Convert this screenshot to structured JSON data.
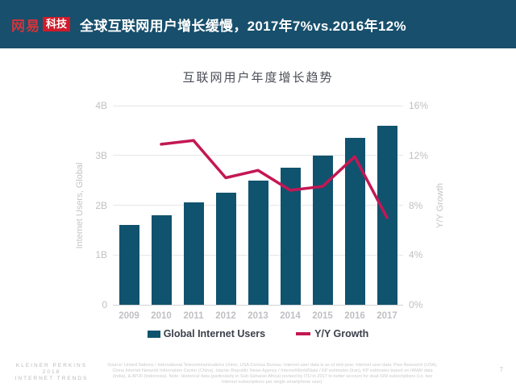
{
  "header": {
    "logo_brand": "网易",
    "logo_badge": "科技",
    "title": "全球互联网用户增长缓慢，2017年7%vs.2016年12%"
  },
  "chart_data": {
    "type": "bar",
    "title": "互联网用户年度增长趋势",
    "categories": [
      "2009",
      "2010",
      "2011",
      "2012",
      "2013",
      "2014",
      "2015",
      "2016",
      "2017"
    ],
    "series": [
      {
        "name": "Global Internet Users",
        "type": "bar",
        "axis": "left",
        "color": "#10536e",
        "values": [
          1.6,
          1.8,
          2.05,
          2.25,
          2.5,
          2.75,
          3.0,
          3.35,
          3.6
        ]
      },
      {
        "name": "Y/Y Growth",
        "type": "line",
        "axis": "right",
        "color": "#c41754",
        "values": [
          null,
          12.9,
          13.2,
          10.2,
          10.8,
          9.2,
          9.5,
          11.9,
          7.0
        ]
      }
    ],
    "left_axis": {
      "label": "Internet Users, Global",
      "ticks": [
        "0",
        "1B",
        "2B",
        "3B",
        "4B"
      ],
      "min": 0,
      "max": 4
    },
    "right_axis": {
      "label": "Y/Y Growth",
      "ticks": [
        "0%",
        "4%",
        "8%",
        "12%",
        "16%"
      ],
      "min": 0,
      "max": 16
    },
    "grid": true,
    "legend_position": "bottom"
  },
  "footer": {
    "brand_line1": "KLEINER PERKINS",
    "brand_line2": "2018",
    "brand_line3": "INTERNET TRENDS",
    "source": "Source: United Nations / International Telecommunications Union, USA Census Bureau. Internet user data is as of mid-year. Internet user data: Pew Research (USA), China Internet Network Information Center (China), Islamic Republic News Agency / InternetWorldStats / KP estimates (Iran), KP estimates based on IAMAI data (India), & APJII (Indonesia). Note: Historical data (particularly in Sub-Saharan Africa) revised by ITU in 2017 to better account for dual-SIM subscriptions (i.e. two Internet subscriptions per single smartphone user).",
    "page_number": "7"
  }
}
